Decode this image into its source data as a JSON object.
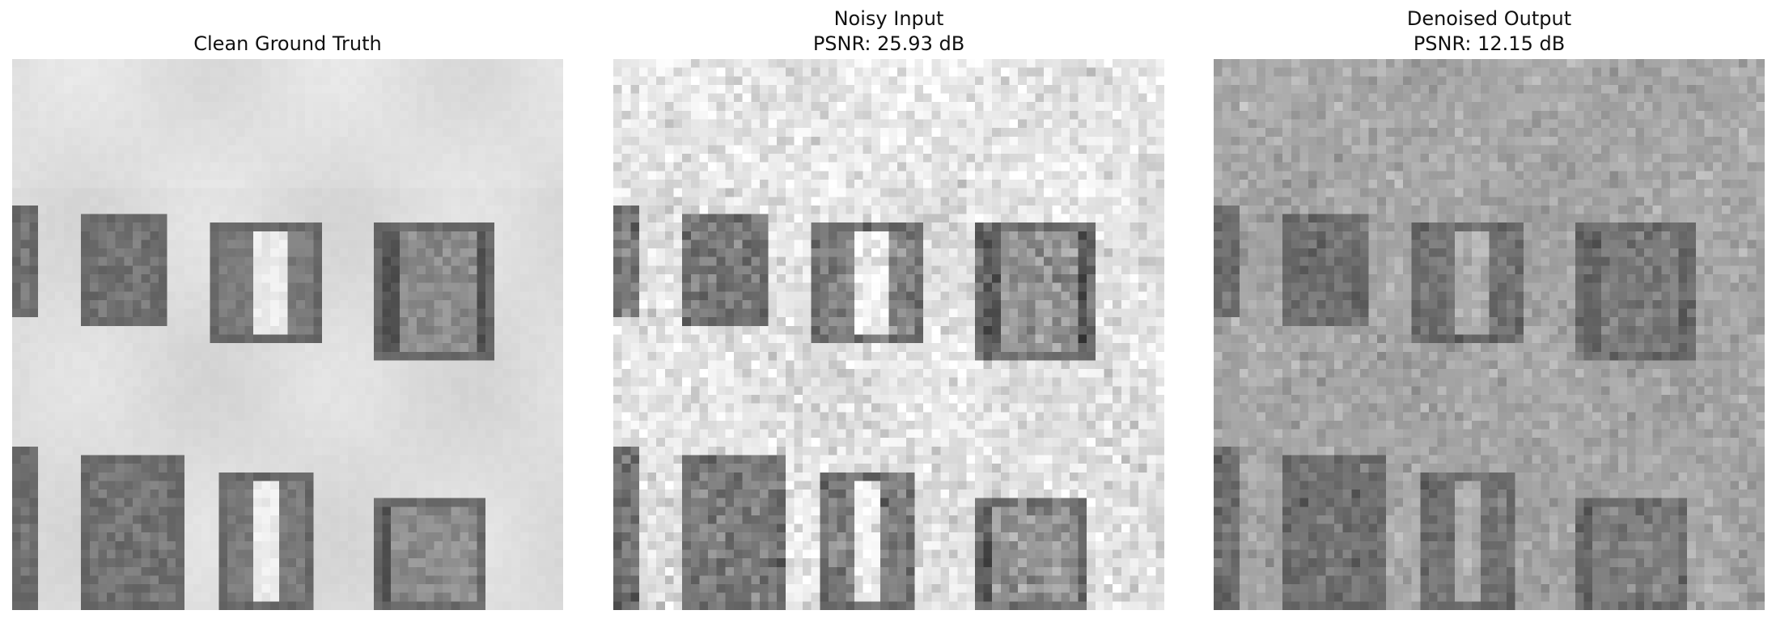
{
  "figure": {
    "panels": [
      {
        "id": "clean",
        "title_lines": [
          "Clean Ground Truth"
        ]
      },
      {
        "id": "noisy",
        "title_lines": [
          "Noisy Input",
          "PSNR: 25.93 dB"
        ]
      },
      {
        "id": "denoised",
        "title_lines": [
          "Denoised Output",
          "PSNR: 12.15 dB"
        ]
      }
    ]
  }
}
